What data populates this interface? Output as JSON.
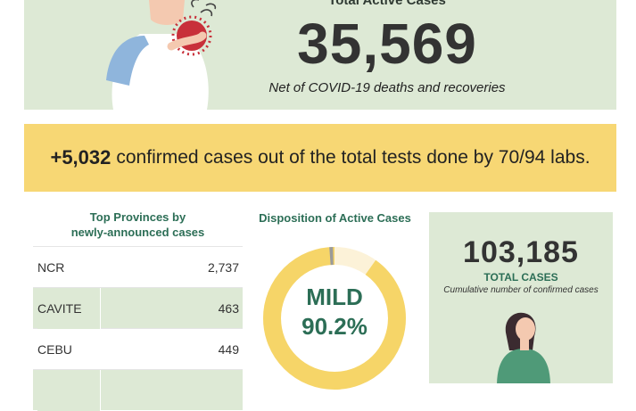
{
  "colors": {
    "panel_green": "#dde9d5",
    "banner_yellow": "#f7d774",
    "accent_green": "#2c6e56",
    "donut_yellow": "#f6d568",
    "donut_cream": "#fcf2d8",
    "donut_red": "#c44a3c",
    "donut_gray": "#9a9a9a"
  },
  "header": {
    "label": "Total Active Cases",
    "value": "35,569",
    "subtitle": "Net of COVID-19 deaths and recoveries",
    "illustration": "coughing-woman-with-virus-icon"
  },
  "banner": {
    "number": "+5,032",
    "text": "confirmed cases out of the total tests done by 70/94 labs."
  },
  "provinces": {
    "title_line1": "Top Provinces by",
    "title_line2": "newly-announced cases",
    "rows": [
      {
        "name": "NCR",
        "value": "2,737"
      },
      {
        "name": "CAVITE",
        "value": "463"
      },
      {
        "name": "CEBU",
        "value": "449"
      },
      {
        "name": "",
        "value": ""
      }
    ]
  },
  "disposition": {
    "title": "Disposition of Active Cases",
    "label": "MILD",
    "value": "90.2%",
    "mild_fraction": 0.902
  },
  "total": {
    "value": "103,185",
    "label": "TOTAL CASES",
    "subtitle": "Cumulative number of confirmed cases",
    "illustration": "person-figure-icon"
  }
}
